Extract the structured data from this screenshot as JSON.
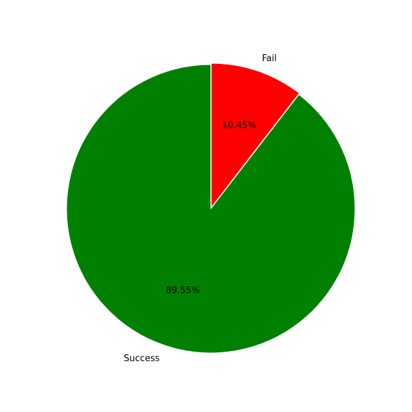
{
  "chart_data": {
    "type": "pie",
    "title": "",
    "slices": [
      {
        "label": "Fail",
        "value": 10.45,
        "pct_label": "10.45%",
        "color": "#ff0000"
      },
      {
        "label": "Success",
        "value": 89.55,
        "pct_label": "89.55%",
        "color": "#008000"
      }
    ],
    "start_angle_deg": 90,
    "direction": "clockwise",
    "exploded": "Fail",
    "wedge_edge_color": "#ffffff"
  }
}
